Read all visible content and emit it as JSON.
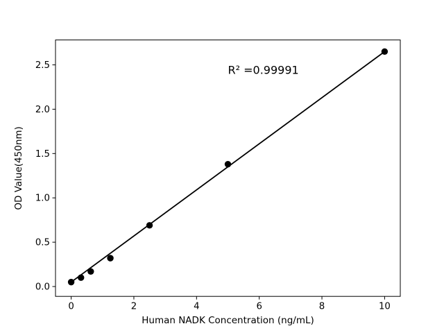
{
  "chart_data": {
    "type": "scatter",
    "title": "",
    "xlabel": "Human NADK Concentration (ng/mL)",
    "ylabel": "OD Value(450nm)",
    "x": [
      0,
      0.3125,
      0.625,
      1.25,
      2.5,
      5,
      10
    ],
    "y": [
      0.05,
      0.1,
      0.17,
      0.32,
      0.69,
      1.38,
      2.65
    ],
    "fit_line": {
      "x1": 0,
      "y1": 0.05,
      "x2": 10,
      "y2": 2.65
    },
    "annotation": {
      "text": "R² =0.99991",
      "x": 5,
      "y": 2.4
    },
    "xlim": [
      -0.5,
      10.5
    ],
    "ylim": [
      -0.111,
      2.781
    ],
    "xticks": [
      0,
      2,
      4,
      6,
      8,
      10
    ],
    "yticks": [
      0.0,
      0.5,
      1.0,
      1.5,
      2.0,
      2.5
    ],
    "ytick_labels": [
      "0.0",
      "0.5",
      "1.0",
      "1.5",
      "2.0",
      "2.5"
    ],
    "grid": false,
    "legend": "none",
    "marker_color": "#000000",
    "line_color": "#000000",
    "frame_color": "#000000",
    "background_color": "#ffffff"
  }
}
